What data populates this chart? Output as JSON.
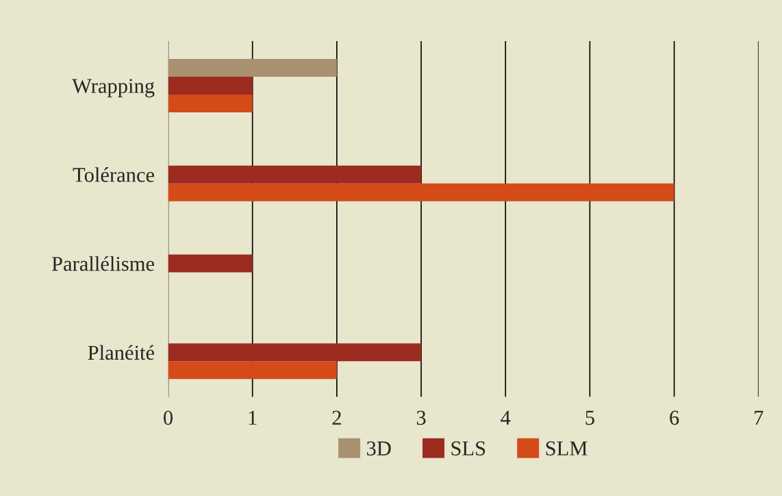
{
  "chart_data": {
    "type": "bar",
    "orientation": "horizontal",
    "categories": [
      "Wrapping",
      "Tolérance",
      "Parallélisme",
      "Planéité"
    ],
    "series": [
      {
        "name": "3D",
        "color": "#a89070",
        "values": [
          2,
          null,
          null,
          null
        ]
      },
      {
        "name": "SLS",
        "color": "#9c2b20",
        "values": [
          1,
          3,
          1,
          3
        ]
      },
      {
        "name": "SLM",
        "color": "#d44a18",
        "values": [
          1,
          6,
          null,
          2
        ]
      }
    ],
    "xlim": [
      0,
      7
    ],
    "xticks": [
      0,
      1,
      2,
      3,
      4,
      5,
      6,
      7
    ],
    "grid": "x",
    "legend": "bottom"
  }
}
